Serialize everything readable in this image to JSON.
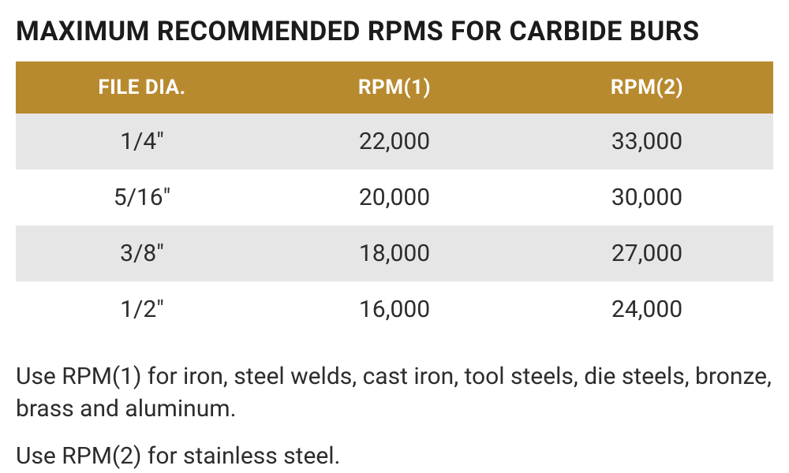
{
  "title": "MAXIMUM RECOMMENDED RPMS FOR CARBIDE BURS",
  "table": {
    "type": "table",
    "header_bg": "#b88a2f",
    "header_fg": "#ffffff",
    "row_bg": "#ffffff",
    "row_alt_bg": "#e6e6e6",
    "header_fontsize": 26,
    "cell_fontsize": 30,
    "columns": [
      "FILE DIA.",
      "RPM(1)",
      "RPM(2)"
    ],
    "rows": [
      {
        "dia": "1/4\"",
        "rpm1": "22,000",
        "rpm2": "33,000"
      },
      {
        "dia": "5/16\"",
        "rpm1": "20,000",
        "rpm2": "30,000"
      },
      {
        "dia": "3/8\"",
        "rpm1": "18,000",
        "rpm2": "27,000"
      },
      {
        "dia": "1/2\"",
        "rpm1": "16,000",
        "rpm2": "24,000"
      }
    ]
  },
  "notes": {
    "line1": "Use RPM(1) for iron, steel welds, cast iron, tool steels, die steels, bronze, brass and aluminum.",
    "line2": "Use RPM(2) for stainless steel."
  },
  "style": {
    "title_fontsize": 34,
    "title_color": "#1b1b1b",
    "body_color": "#2c2c2c",
    "note_fontsize": 30,
    "background": "#ffffff"
  }
}
